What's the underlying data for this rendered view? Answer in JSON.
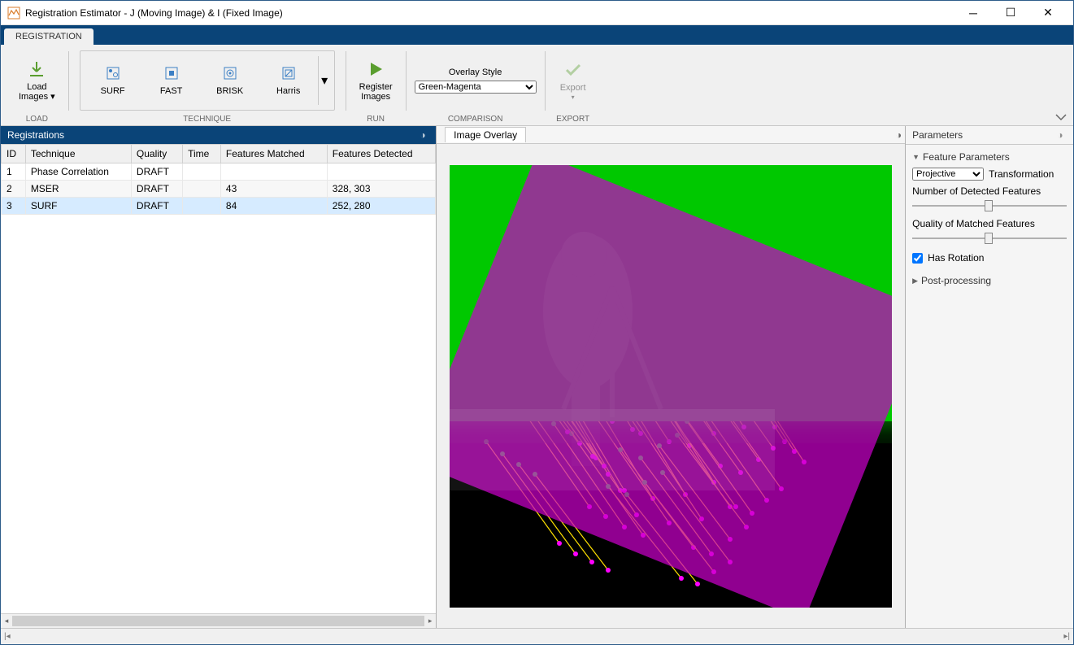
{
  "window": {
    "title": "Registration Estimator - J (Moving Image) & I (Fixed Image)"
  },
  "ribbon": {
    "tab": "REGISTRATION",
    "groups": {
      "load": {
        "label": "LOAD",
        "button": "Load\nImages ▾"
      },
      "technique": {
        "label": "TECHNIQUE",
        "items": [
          "SURF",
          "FAST",
          "BRISK",
          "Harris"
        ]
      },
      "run": {
        "label": "RUN",
        "button": "Register\nImages"
      },
      "comparison": {
        "label": "COMPARISON",
        "caption": "Overlay Style",
        "selected": "Green-Magenta"
      },
      "export": {
        "label": "EXPORT",
        "button": "Export",
        "enabled": false
      }
    }
  },
  "left_panel": {
    "title": "Registrations",
    "columns": [
      "ID",
      "Technique",
      "Quality",
      "Time",
      "Features Matched",
      "Features Detected"
    ],
    "rows": [
      {
        "id": "1",
        "tech": "Phase Correlation",
        "quality": "DRAFT",
        "time": "",
        "matched": "",
        "detected": ""
      },
      {
        "id": "2",
        "tech": "MSER",
        "quality": "DRAFT",
        "time": "",
        "matched": "43",
        "detected": "328, 303"
      },
      {
        "id": "3",
        "tech": "SURF",
        "quality": "DRAFT",
        "time": "",
        "matched": "84",
        "detected": "252, 280"
      }
    ],
    "selected_row": 2
  },
  "mid_panel": {
    "tab": "Image Overlay",
    "overlay_colors": {
      "fixed": "#00c800",
      "moving": "#c800c8",
      "line": "#ffe100"
    },
    "rotation_deg": 22,
    "features": [
      [
        180,
        120,
        260,
        230
      ],
      [
        200,
        110,
        280,
        220
      ],
      [
        220,
        115,
        300,
        235
      ],
      [
        250,
        105,
        320,
        210
      ],
      [
        170,
        160,
        250,
        280
      ],
      [
        195,
        170,
        275,
        300
      ],
      [
        230,
        150,
        310,
        270
      ],
      [
        260,
        145,
        340,
        265
      ],
      [
        150,
        200,
        235,
        330
      ],
      [
        185,
        210,
        270,
        340
      ],
      [
        210,
        205,
        295,
        345
      ],
      [
        240,
        195,
        325,
        330
      ],
      [
        120,
        250,
        210,
        400
      ],
      [
        160,
        260,
        250,
        410
      ],
      [
        200,
        255,
        290,
        405
      ],
      [
        235,
        245,
        325,
        390
      ],
      [
        270,
        130,
        350,
        240
      ],
      [
        290,
        140,
        370,
        255
      ],
      [
        300,
        160,
        380,
        280
      ],
      [
        310,
        180,
        390,
        300
      ],
      [
        140,
        300,
        230,
        430
      ],
      [
        180,
        310,
        270,
        440
      ],
      [
        220,
        300,
        310,
        435
      ],
      [
        255,
        290,
        345,
        420
      ],
      [
        90,
        220,
        180,
        360
      ],
      [
        110,
        240,
        195,
        380
      ],
      [
        135,
        265,
        215,
        400
      ],
      [
        280,
        200,
        362,
        322
      ],
      [
        130,
        140,
        215,
        250
      ],
      [
        155,
        130,
        235,
        245
      ],
      [
        175,
        135,
        255,
        252
      ],
      [
        205,
        128,
        282,
        232
      ],
      [
        95,
        185,
        180,
        300
      ],
      [
        120,
        192,
        200,
        315
      ],
      [
        148,
        198,
        225,
        325
      ],
      [
        172,
        188,
        248,
        308
      ],
      [
        250,
        255,
        333,
        370
      ],
      [
        275,
        262,
        358,
        378
      ],
      [
        298,
        248,
        380,
        362
      ],
      [
        318,
        235,
        398,
        348
      ],
      [
        82,
        290,
        172,
        420
      ],
      [
        102,
        305,
        192,
        432
      ],
      [
        128,
        318,
        215,
        445
      ],
      [
        150,
        330,
        238,
        455
      ],
      [
        320,
        200,
        400,
        322
      ],
      [
        332,
        218,
        412,
        340
      ],
      [
        346,
        232,
        424,
        352
      ],
      [
        360,
        248,
        436,
        365
      ],
      [
        210,
        350,
        300,
        470
      ],
      [
        235,
        360,
        322,
        478
      ],
      [
        258,
        345,
        345,
        460
      ],
      [
        280,
        332,
        365,
        445
      ],
      [
        62,
        165,
        150,
        280
      ],
      [
        80,
        148,
        168,
        262
      ],
      [
        98,
        132,
        185,
        248
      ],
      [
        116,
        118,
        202,
        235
      ],
      [
        248,
        180,
        330,
        295
      ],
      [
        268,
        172,
        348,
        288
      ],
      [
        288,
        162,
        366,
        278
      ],
      [
        308,
        155,
        385,
        268
      ],
      [
        330,
        120,
        408,
        232
      ],
      [
        348,
        132,
        424,
        245
      ],
      [
        362,
        148,
        436,
        260
      ],
      [
        375,
        165,
        448,
        278
      ],
      [
        45,
        340,
        135,
        465
      ],
      [
        65,
        355,
        155,
        478
      ],
      [
        85,
        368,
        175,
        488
      ],
      [
        105,
        380,
        195,
        498
      ],
      [
        195,
        395,
        285,
        508
      ],
      [
        218,
        405,
        305,
        515
      ],
      [
        240,
        390,
        325,
        500
      ],
      [
        262,
        378,
        345,
        488
      ],
      [
        150,
        85,
        230,
        195
      ],
      [
        172,
        78,
        250,
        188
      ],
      [
        192,
        72,
        268,
        182
      ],
      [
        212,
        68,
        286,
        175
      ],
      [
        270,
        305,
        352,
        420
      ],
      [
        292,
        315,
        372,
        428
      ],
      [
        312,
        300,
        390,
        412
      ],
      [
        330,
        288,
        408,
        398
      ],
      [
        55,
        205,
        145,
        328
      ],
      [
        72,
        222,
        160,
        342
      ],
      [
        88,
        238,
        176,
        358
      ],
      [
        104,
        252,
        190,
        370
      ]
    ]
  },
  "right_panel": {
    "title": "Parameters",
    "section1": "Feature Parameters",
    "transform_label": "Transformation",
    "transform_value": "Projective",
    "detected_label": "Number of Detected Features",
    "detected_pos": 0.5,
    "quality_label": "Quality of Matched Features",
    "quality_pos": 0.5,
    "rotation_label": "Has Rotation",
    "rotation_checked": true,
    "section2": "Post-processing"
  }
}
